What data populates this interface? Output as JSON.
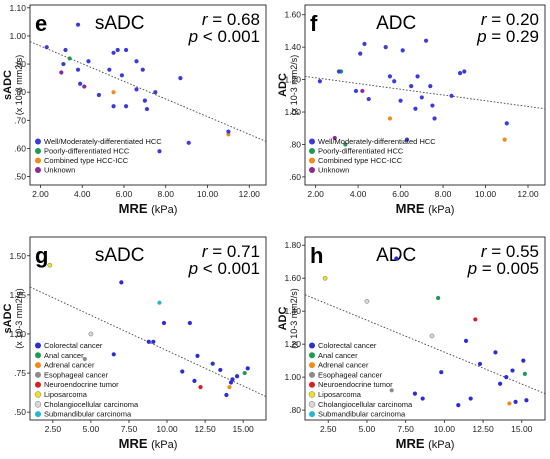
{
  "chart_data": [
    {
      "type": "scatter",
      "panel": "e",
      "title": "sADC",
      "r": "0.68",
      "p": "< 0.001",
      "xlabel": "MRE",
      "xunit": "(kPa)",
      "ylabel": "sADC",
      "yunit": "(x 10-3 mm2/s)",
      "xlim": [
        1.5,
        12.8
      ],
      "ylim": [
        0.47,
        1.11
      ],
      "xticks": [
        "2.00",
        "4.00",
        "6.00",
        "8.00",
        "10.00",
        "12.00"
      ],
      "yticks": [
        ".50",
        ".60",
        ".70",
        ".80",
        ".90",
        "1.00",
        "1.10"
      ],
      "trend": [
        [
          1.5,
          0.98
        ],
        [
          12.8,
          0.625
        ]
      ],
      "legend": [
        {
          "label": "Well/Moderately-differentiated HCC",
          "color": "#3a3adf"
        },
        {
          "label": "Poorly-differentiated HCC",
          "color": "#1e9a55"
        },
        {
          "label": "Combined type HCC-ICC",
          "color": "#f08a1c"
        },
        {
          "label": "Unknown",
          "color": "#8a2a9a"
        }
      ],
      "points": [
        {
          "x": 2.3,
          "y": 0.96,
          "g": 0
        },
        {
          "x": 3.2,
          "y": 0.95,
          "g": 0
        },
        {
          "x": 3.8,
          "y": 1.04,
          "g": 0
        },
        {
          "x": 3.4,
          "y": 0.92,
          "g": 1
        },
        {
          "x": 3.0,
          "y": 0.87,
          "g": 3
        },
        {
          "x": 3.1,
          "y": 0.9,
          "g": 0
        },
        {
          "x": 3.8,
          "y": 0.88,
          "g": 0
        },
        {
          "x": 4.3,
          "y": 0.91,
          "g": 0
        },
        {
          "x": 3.9,
          "y": 0.83,
          "g": 0
        },
        {
          "x": 4.1,
          "y": 0.82,
          "g": 3
        },
        {
          "x": 4.8,
          "y": 0.79,
          "g": 0
        },
        {
          "x": 5.3,
          "y": 0.88,
          "g": 0
        },
        {
          "x": 5.5,
          "y": 0.94,
          "g": 0
        },
        {
          "x": 5.7,
          "y": 0.95,
          "g": 0
        },
        {
          "x": 6.1,
          "y": 0.95,
          "g": 0
        },
        {
          "x": 5.9,
          "y": 0.86,
          "g": 0
        },
        {
          "x": 5.5,
          "y": 0.8,
          "g": 2
        },
        {
          "x": 5.5,
          "y": 0.75,
          "g": 0
        },
        {
          "x": 6.1,
          "y": 0.75,
          "g": 0
        },
        {
          "x": 6.6,
          "y": 0.91,
          "g": 0
        },
        {
          "x": 6.6,
          "y": 0.81,
          "g": 0
        },
        {
          "x": 6.9,
          "y": 0.88,
          "g": 0
        },
        {
          "x": 7.0,
          "y": 0.77,
          "g": 0
        },
        {
          "x": 7.5,
          "y": 0.8,
          "g": 0
        },
        {
          "x": 7.1,
          "y": 0.74,
          "g": 0
        },
        {
          "x": 8.7,
          "y": 0.85,
          "g": 0
        },
        {
          "x": 7.7,
          "y": 0.59,
          "g": 0
        },
        {
          "x": 9.1,
          "y": 0.62,
          "g": 0
        },
        {
          "x": 11.0,
          "y": 0.65,
          "g": 2
        },
        {
          "x": 11.0,
          "y": 0.66,
          "g": 0
        }
      ]
    },
    {
      "type": "scatter",
      "panel": "f",
      "title": "ADC",
      "r": "0.20",
      "p": "0.29",
      "xlabel": "MRE",
      "xunit": "(kPa)",
      "ylabel": "ADC",
      "yunit": "(x 10-3 mm2/s)",
      "xlim": [
        1.5,
        12.8
      ],
      "ylim": [
        0.55,
        1.66
      ],
      "xticks": [
        "2.00",
        "4.00",
        "6.00",
        "8.00",
        "10.00",
        "12.00"
      ],
      "yticks": [
        ".60",
        ".80",
        "1.00",
        "1.20",
        "1.40",
        "1.60"
      ],
      "trend": [
        [
          1.5,
          1.22
        ],
        [
          12.8,
          1.02
        ]
      ],
      "legend": [
        {
          "label": "Well/Moderately-differentiated HCC",
          "color": "#3a3adf"
        },
        {
          "label": "Poorly-differentiated HCC",
          "color": "#1e9a55"
        },
        {
          "label": "Combined type HCC-ICC",
          "color": "#f08a1c"
        },
        {
          "label": "Unknown",
          "color": "#8a2a9a"
        }
      ],
      "points": [
        {
          "x": 2.2,
          "y": 1.19,
          "g": 0
        },
        {
          "x": 3.2,
          "y": 1.25,
          "g": 1
        },
        {
          "x": 3.1,
          "y": 1.25,
          "g": 0
        },
        {
          "x": 3.4,
          "y": 0.8,
          "g": 1
        },
        {
          "x": 2.9,
          "y": 0.84,
          "g": 3
        },
        {
          "x": 3.9,
          "y": 1.13,
          "g": 0
        },
        {
          "x": 4.2,
          "y": 1.13,
          "g": 3
        },
        {
          "x": 4.3,
          "y": 1.42,
          "g": 0
        },
        {
          "x": 4.1,
          "y": 1.36,
          "g": 0
        },
        {
          "x": 4.5,
          "y": 1.08,
          "g": 0
        },
        {
          "x": 5.3,
          "y": 1.4,
          "g": 0
        },
        {
          "x": 5.5,
          "y": 1.22,
          "g": 0
        },
        {
          "x": 5.5,
          "y": 0.96,
          "g": 2
        },
        {
          "x": 5.7,
          "y": 1.19,
          "g": 0
        },
        {
          "x": 6.1,
          "y": 1.38,
          "g": 0
        },
        {
          "x": 6.0,
          "y": 1.07,
          "g": 0
        },
        {
          "x": 6.3,
          "y": 0.83,
          "g": 0
        },
        {
          "x": 6.5,
          "y": 1.16,
          "g": 0
        },
        {
          "x": 6.7,
          "y": 1.02,
          "g": 0
        },
        {
          "x": 6.8,
          "y": 1.22,
          "g": 0
        },
        {
          "x": 7.0,
          "y": 1.09,
          "g": 0
        },
        {
          "x": 7.2,
          "y": 1.44,
          "g": 0
        },
        {
          "x": 7.4,
          "y": 1.16,
          "g": 0
        },
        {
          "x": 7.5,
          "y": 1.04,
          "g": 0
        },
        {
          "x": 7.6,
          "y": 0.96,
          "g": 0
        },
        {
          "x": 8.4,
          "y": 1.1,
          "g": 0
        },
        {
          "x": 8.8,
          "y": 1.24,
          "g": 0
        },
        {
          "x": 9.0,
          "y": 1.25,
          "g": 0
        },
        {
          "x": 10.9,
          "y": 0.83,
          "g": 2
        },
        {
          "x": 11.0,
          "y": 0.93,
          "g": 0
        }
      ]
    },
    {
      "type": "scatter",
      "panel": "g",
      "title": "sADC",
      "r": "0.71",
      "p": "< 0.001",
      "xlabel": "MRE",
      "xunit": "(kPa)",
      "ylabel": "sADC",
      "yunit": "(x 10-3 mm2/s)",
      "xlim": [
        1.0,
        16.5
      ],
      "ylim": [
        0.45,
        1.62
      ],
      "xticks": [
        "2.50",
        "5.00",
        "7.50",
        "10.00",
        "12.50",
        "15.00"
      ],
      "yticks": [
        ".50",
        ".75",
        "1.00",
        "1.25",
        "1.50"
      ],
      "trend": [
        [
          1.0,
          1.3
        ],
        [
          16.5,
          0.6
        ]
      ],
      "legend": [
        {
          "label": "Colorectal cancer",
          "color": "#2c2cd6",
          "hollow": false
        },
        {
          "label": "Anal cancer",
          "color": "#1e9a55",
          "hollow": false
        },
        {
          "label": "Adrenal cancer",
          "color": "#f08a1c",
          "hollow": false
        },
        {
          "label": "Esophageal cancer",
          "color": "#8c8c8c",
          "hollow": false
        },
        {
          "label": "Neuroendocrine tumor",
          "color": "#d42020",
          "hollow": false
        },
        {
          "label": "Liposarcoma",
          "color": "#f0e020",
          "hollow": false
        },
        {
          "label": "Cholangiocellular carcinoma",
          "color": "#d8d8d8",
          "hollow": false
        },
        {
          "label": "Submandibular carcinoma",
          "color": "#22b8d8",
          "hollow": false
        }
      ],
      "points": [
        {
          "x": 2.3,
          "y": 1.44,
          "g": 5
        },
        {
          "x": 5.0,
          "y": 1.0,
          "g": 6
        },
        {
          "x": 4.6,
          "y": 0.84,
          "g": 3
        },
        {
          "x": 6.5,
          "y": 0.87,
          "g": 0
        },
        {
          "x": 7.0,
          "y": 1.33,
          "g": 0
        },
        {
          "x": 8.8,
          "y": 0.95,
          "g": 0
        },
        {
          "x": 9.1,
          "y": 0.95,
          "g": 0
        },
        {
          "x": 9.5,
          "y": 1.2,
          "g": 7
        },
        {
          "x": 9.8,
          "y": 1.07,
          "g": 0
        },
        {
          "x": 11.5,
          "y": 1.07,
          "g": 0
        },
        {
          "x": 11.0,
          "y": 0.76,
          "g": 0
        },
        {
          "x": 11.8,
          "y": 0.7,
          "g": 0
        },
        {
          "x": 12.0,
          "y": 0.86,
          "g": 0
        },
        {
          "x": 12.2,
          "y": 0.66,
          "g": 4
        },
        {
          "x": 13.0,
          "y": 0.81,
          "g": 0
        },
        {
          "x": 13.5,
          "y": 0.77,
          "g": 0
        },
        {
          "x": 13.9,
          "y": 0.61,
          "g": 0
        },
        {
          "x": 14.1,
          "y": 0.66,
          "g": 2
        },
        {
          "x": 14.2,
          "y": 0.69,
          "g": 0
        },
        {
          "x": 14.3,
          "y": 0.71,
          "g": 0
        },
        {
          "x": 14.6,
          "y": 0.73,
          "g": 0
        },
        {
          "x": 15.1,
          "y": 0.75,
          "g": 1
        },
        {
          "x": 15.3,
          "y": 0.78,
          "g": 0
        }
      ]
    },
    {
      "type": "scatter",
      "panel": "h",
      "title": "ADC",
      "r": "0.55",
      "p": "0.005",
      "xlabel": "MRE",
      "xunit": "(kPa)",
      "ylabel": "ADC",
      "yunit": "(x 10-3 mm2/s)",
      "xlim": [
        1.0,
        16.5
      ],
      "ylim": [
        0.74,
        1.85
      ],
      "xticks": [
        "2.50",
        "5.00",
        "7.50",
        "10.00",
        "12.50",
        "15.00"
      ],
      "yticks": [
        ".80",
        "1.00",
        "1.20",
        "1.40",
        "1.60",
        "1.80"
      ],
      "trend": [
        [
          1.0,
          1.5
        ],
        [
          16.5,
          0.9
        ]
      ],
      "legend": [
        {
          "label": "Colorectal cancer",
          "color": "#2c2cd6",
          "hollow": false
        },
        {
          "label": "Anal cancer",
          "color": "#1e9a55",
          "hollow": false
        },
        {
          "label": "Adrenal cancer",
          "color": "#f08a1c",
          "hollow": false
        },
        {
          "label": "Esophageal cancer",
          "color": "#8c8c8c",
          "hollow": false
        },
        {
          "label": "Neuroendocrine tumor",
          "color": "#d42020",
          "hollow": false
        },
        {
          "label": "Liposarcoma",
          "color": "#f0e020",
          "hollow": false
        },
        {
          "label": "Cholangiocellular carcinoma",
          "color": "#d8d8d8",
          "hollow": false
        },
        {
          "label": "Submandibular carcinoma",
          "color": "#22b8d8",
          "hollow": false
        }
      ],
      "points": [
        {
          "x": 2.3,
          "y": 1.6,
          "g": 5
        },
        {
          "x": 5.0,
          "y": 1.46,
          "g": 6
        },
        {
          "x": 6.6,
          "y": 0.92,
          "g": 3
        },
        {
          "x": 6.9,
          "y": 1.72,
          "g": 0
        },
        {
          "x": 8.1,
          "y": 0.9,
          "g": 0
        },
        {
          "x": 8.6,
          "y": 0.87,
          "g": 0
        },
        {
          "x": 9.2,
          "y": 1.25,
          "g": 6
        },
        {
          "x": 9.6,
          "y": 1.48,
          "g": 1
        },
        {
          "x": 9.8,
          "y": 1.03,
          "g": 0
        },
        {
          "x": 10.9,
          "y": 0.83,
          "g": 0
        },
        {
          "x": 11.4,
          "y": 1.22,
          "g": 0
        },
        {
          "x": 11.7,
          "y": 0.87,
          "g": 0
        },
        {
          "x": 12.0,
          "y": 1.35,
          "g": 4
        },
        {
          "x": 12.3,
          "y": 1.08,
          "g": 0
        },
        {
          "x": 13.3,
          "y": 1.15,
          "g": 0
        },
        {
          "x": 13.6,
          "y": 0.96,
          "g": 0
        },
        {
          "x": 14.0,
          "y": 1.0,
          "g": 0
        },
        {
          "x": 14.2,
          "y": 0.84,
          "g": 2
        },
        {
          "x": 14.4,
          "y": 1.04,
          "g": 0
        },
        {
          "x": 14.6,
          "y": 0.85,
          "g": 0
        },
        {
          "x": 15.1,
          "y": 1.1,
          "g": 0
        },
        {
          "x": 15.2,
          "y": 1.02,
          "g": 1
        },
        {
          "x": 15.3,
          "y": 0.86,
          "g": 0
        }
      ]
    }
  ]
}
